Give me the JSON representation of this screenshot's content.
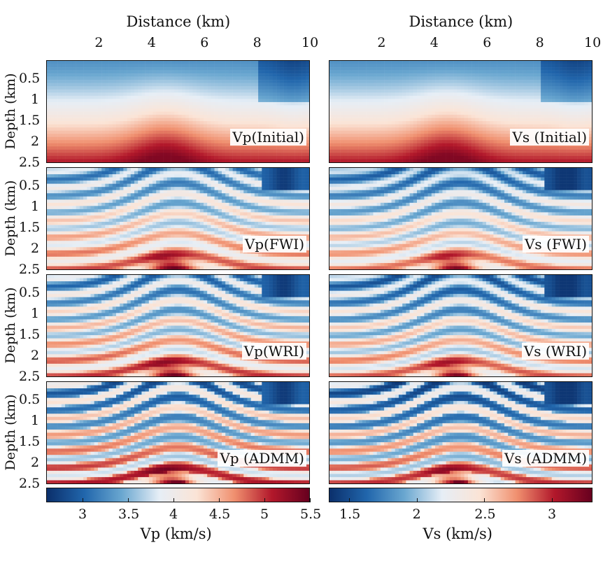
{
  "chart_data": {
    "type": "heatmap",
    "colormap": [
      "#0b2f6b",
      "#2166ac",
      "#6aa7d0",
      "#e6eef6",
      "#fbe4d6",
      "#f0906f",
      "#b2182b",
      "#67001f"
    ],
    "columns": [
      {
        "xlabel": "Distance (km)",
        "xticks": [
          "2",
          "4",
          "6",
          "8",
          "10"
        ],
        "xtick_values": [
          2,
          4,
          6,
          8,
          10
        ],
        "xlim": [
          0,
          10
        ],
        "colorbar": {
          "label": "Vp (km/s)",
          "ticks": [
            "3",
            "3.5",
            "4",
            "4.5",
            "5",
            "5.5"
          ],
          "tick_values": [
            3,
            3.5,
            4,
            4.5,
            5,
            5.5
          ],
          "range": [
            2.6,
            5.5
          ]
        }
      },
      {
        "xlabel": "Distance (km)",
        "xticks": [
          "2",
          "4",
          "6",
          "8",
          "10"
        ],
        "xtick_values": [
          2,
          4,
          6,
          8,
          10
        ],
        "xlim": [
          0,
          10
        ],
        "colorbar": {
          "label": "Vs (km/s)",
          "ticks": [
            "1.5",
            "2",
            "2.5",
            "3"
          ],
          "tick_values": [
            1.5,
            2,
            2.5,
            3
          ],
          "range": [
            1.35,
            3.3
          ]
        }
      }
    ],
    "rows": [
      {
        "ylabel": "Depth (km)",
        "yticks": [
          "0.5",
          "1",
          "1.5",
          "2",
          "2.5"
        ],
        "panels": [
          "Vp(Initial)",
          "Vs (Initial)"
        ],
        "kind": "initial"
      },
      {
        "ylabel": "Depth (km)",
        "yticks": [
          "0.5",
          "1",
          "1.5",
          "2",
          "2.5"
        ],
        "panels": [
          "Vp(FWI)",
          "Vs (FWI)"
        ],
        "kind": "fwi"
      },
      {
        "ylabel": "Depth (km)",
        "yticks": [
          "0.5",
          "1",
          "1.5",
          "2",
          "2.5"
        ],
        "panels": [
          "Vp(WRI)",
          "Vs (WRI)"
        ],
        "kind": "wri"
      },
      {
        "ylabel": "Depth (km)",
        "yticks": [
          "0.5",
          "1",
          "1.5",
          "2",
          "2.5"
        ],
        "panels": [
          "Vp (ADMM)",
          "Vs (ADMM)"
        ],
        "kind": "admm"
      }
    ],
    "ytick_values": [
      0.5,
      1,
      1.5,
      2,
      2.5
    ],
    "ylim": [
      0.05,
      2.5
    ]
  }
}
